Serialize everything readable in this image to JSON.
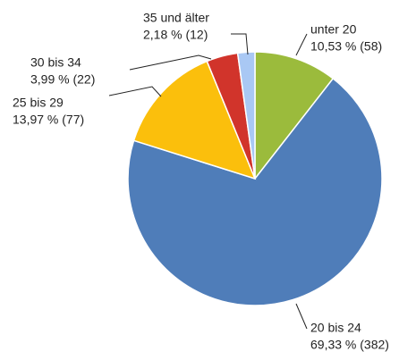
{
  "chart_data": {
    "type": "pie",
    "categories": [
      "unter 20",
      "20 bis 24",
      "25 bis 29",
      "30 bis 34",
      "35 und älter"
    ],
    "values": [
      10.53,
      69.33,
      13.97,
      3.99,
      2.18
    ],
    "value_labels": [
      "10,53 % (58)",
      "69,33 % (382)",
      "13,97 % (77)",
      "3,99 % (22)",
      "2,18 % (12)"
    ],
    "counts": [
      58,
      382,
      77,
      22,
      12
    ],
    "colors": [
      "#9bbb3c",
      "#4f7db9",
      "#fbbf0c",
      "#d1342b",
      "#a9c8f4"
    ]
  }
}
